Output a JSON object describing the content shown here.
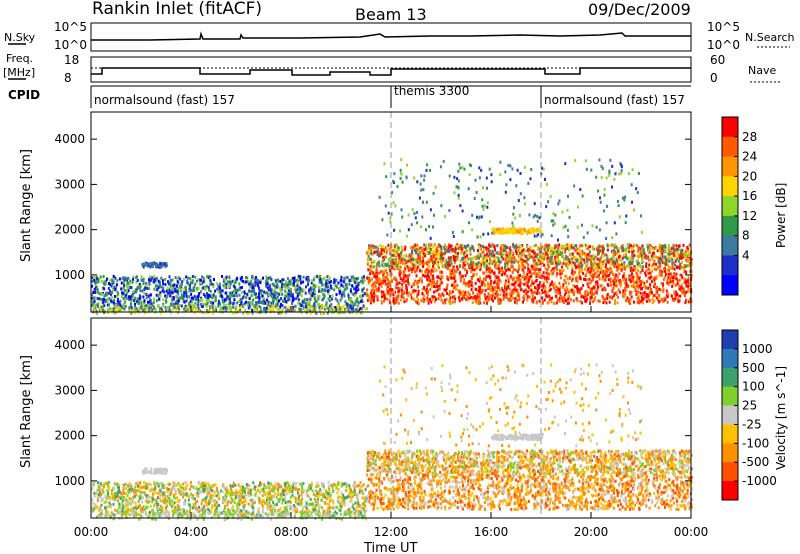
{
  "header": {
    "title": "Rankin Inlet (fitACF)",
    "beam": "Beam 13",
    "date": "09/Dec/2009"
  },
  "nsky": {
    "label": "N.Sky",
    "ticks": [
      "10^5",
      "10^0"
    ]
  },
  "nsearch": {
    "label": "N.Search",
    "ticks": [
      "10^5",
      "10^0"
    ]
  },
  "freq": {
    "label": "Freq.",
    "unit": "[MHz]",
    "ticks": [
      "18",
      "8"
    ]
  },
  "nave": {
    "label": "Nave",
    "ticks": [
      "60",
      "0"
    ]
  },
  "cpid": {
    "label": "CPID",
    "segments": [
      {
        "name": "normalsound (fast) 157",
        "start_hour": 0
      },
      {
        "name": "themis 3300",
        "start_hour": 12
      },
      {
        "name": "normalsound (fast) 157",
        "start_hour": 18
      }
    ]
  },
  "power_scale": {
    "label": "Power [dB]",
    "ticks": [
      "28",
      "24",
      "20",
      "16",
      "12",
      "8",
      "4"
    ],
    "colors": [
      "#ff0000",
      "#ff5a00",
      "#ff9600",
      "#ffd400",
      "#8ed62a",
      "#2f9a4a",
      "#3c7aa0",
      "#1e2ec8",
      "#0000ff"
    ]
  },
  "velocity_scale": {
    "label": "Velocity [m s^-1]",
    "ticks": [
      "1000",
      "500",
      "100",
      "25",
      "-25",
      "-100",
      "-500",
      "-1000"
    ],
    "colors": [
      "#1f3fb0",
      "#2f79b8",
      "#3ea06a",
      "#7fd02a",
      "#c8c8c8",
      "#ffc000",
      "#ff9000",
      "#ff5000",
      "#ff0000"
    ]
  },
  "power_panel": {
    "ylabel": "Slant Range [km]",
    "yticks": [
      "4000",
      "3000",
      "2000",
      "1000"
    ]
  },
  "velocity_panel": {
    "ylabel": "Slant Range [km]",
    "yticks": [
      "4000",
      "3000",
      "2000",
      "1000"
    ]
  },
  "xaxis": {
    "label": "Time UT",
    "ticks": [
      "00:00",
      "04:00",
      "08:00",
      "12:00",
      "16:00",
      "20:00",
      "00:00"
    ]
  },
  "chart_data": {
    "type": "heatmap",
    "x_range_hours": [
      0,
      24
    ],
    "y_range_km": [
      180,
      4600
    ],
    "regions": [
      {
        "x": [
          0,
          11
        ],
        "y": [
          200,
          1000
        ],
        "power": "4-16",
        "velocity": "-100 to 100"
      },
      {
        "x": [
          11,
          24
        ],
        "y": [
          300,
          1700
        ],
        "power": "16-30",
        "velocity": "-500 to -100"
      },
      {
        "x": [
          2,
          3
        ],
        "y": [
          1200,
          1300
        ],
        "power": "4-8",
        "velocity": "-25 to 25"
      },
      {
        "x": [
          16,
          18
        ],
        "y": [
          1950,
          2050
        ],
        "power": "16-20",
        "velocity": "-25 to 25"
      }
    ]
  }
}
